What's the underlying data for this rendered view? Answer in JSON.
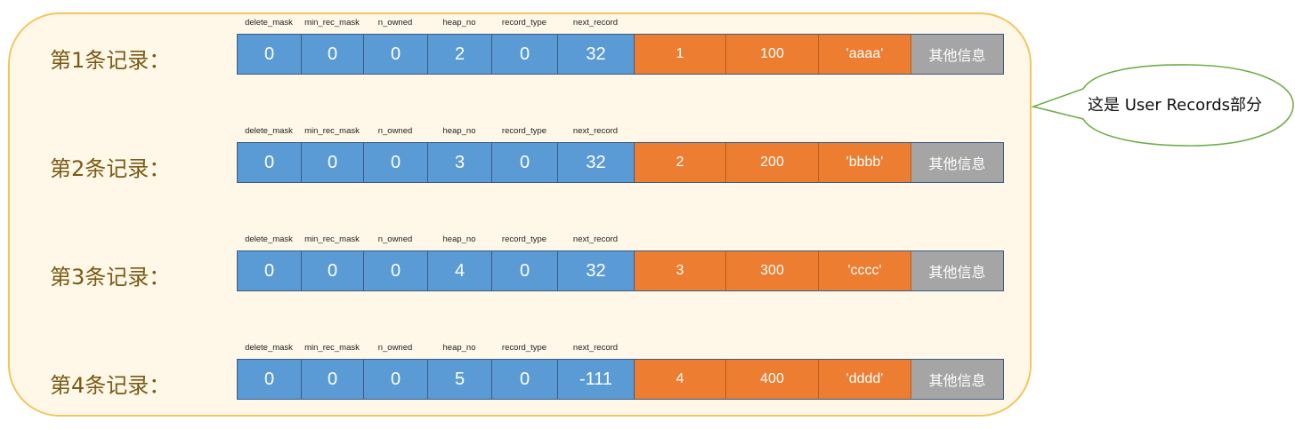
{
  "field_headers": [
    "delete_mask",
    "min_rec_mask",
    "n_owned",
    "heap_no",
    "record_type",
    "next_record"
  ],
  "records": [
    {
      "label": "第1条记录：",
      "header_values": [
        "0",
        "0",
        "0",
        "2",
        "0",
        "32"
      ],
      "column_values": [
        "1",
        "100",
        "'aaaa'"
      ],
      "other_info": "其他信息"
    },
    {
      "label": "第2条记录：",
      "header_values": [
        "0",
        "0",
        "0",
        "3",
        "0",
        "32"
      ],
      "column_values": [
        "2",
        "200",
        "'bbbb'"
      ],
      "other_info": "其他信息"
    },
    {
      "label": "第3条记录：",
      "header_values": [
        "0",
        "0",
        "0",
        "4",
        "0",
        "32"
      ],
      "column_values": [
        "3",
        "300",
        "'cccc'"
      ],
      "other_info": "其他信息"
    },
    {
      "label": "第4条记录：",
      "header_values": [
        "0",
        "0",
        "0",
        "5",
        "0",
        "-111"
      ],
      "column_values": [
        "4",
        "400",
        "'dddd'"
      ],
      "other_info": "其他信息"
    }
  ],
  "callout": {
    "text": "这是 User Records部分"
  },
  "colors": {
    "header_blue": "#5b9bd5",
    "column_orange": "#ed7d31",
    "other_gray": "#a5a5a5",
    "container_fill": "#fff8e8",
    "container_border": "#f3c55c",
    "callout_border": "#70ad47"
  }
}
